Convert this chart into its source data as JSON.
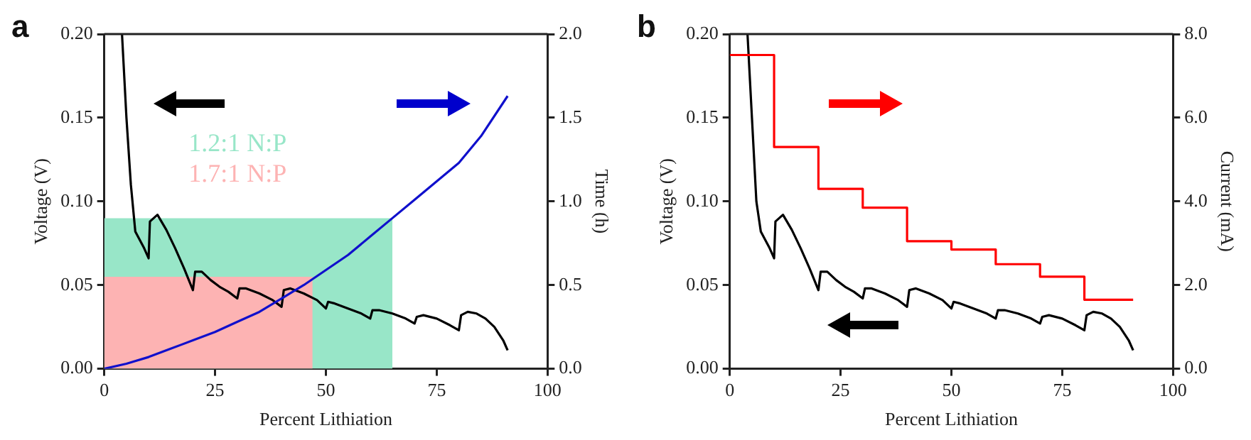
{
  "chart_data": [
    {
      "type": "line",
      "title": "a",
      "xlabel": "Percent Lithiation",
      "ylabel": "Voltage (V)",
      "y2label": "Time (h)",
      "legend": false,
      "grid": false,
      "xlim": [
        0,
        100
      ],
      "xticks": [
        0,
        25,
        50,
        75,
        100
      ],
      "ylim": [
        0,
        0.2
      ],
      "yticks": [
        {
          "value": 0,
          "label": "0.00"
        },
        {
          "value": 0.05,
          "label": "0.05"
        },
        {
          "value": 0.1,
          "label": "0.10"
        },
        {
          "value": 0.15,
          "label": "0.15"
        },
        {
          "value": 0.2,
          "label": "0.20"
        }
      ],
      "y2lim": [
        0,
        2
      ],
      "y2ticks": [
        {
          "value": 0,
          "label": "0.0"
        },
        {
          "value": 0.5,
          "label": "0.5"
        },
        {
          "value": 1,
          "label": "1.0"
        },
        {
          "value": 1.5,
          "label": "1.5"
        },
        {
          "value": 2,
          "label": "2.0"
        }
      ],
      "series": [
        {
          "type": "area",
          "name": "1.2:1 N:P",
          "color": "#98e6c8",
          "x": [
            0,
            65
          ],
          "values": [
            0.09,
            0.09
          ]
        },
        {
          "type": "area",
          "name": "1.7:1 N:P",
          "color": "#fdb3b3",
          "x": [
            0,
            47
          ],
          "values": [
            0.055,
            0.055
          ]
        },
        {
          "type": "line",
          "color": "#000000",
          "x": [
            4,
            5,
            6,
            7,
            9,
            10,
            10.3,
            12,
            14,
            16,
            18,
            20,
            20.5,
            22,
            24,
            26,
            28,
            30,
            30.5,
            32,
            35,
            38,
            40,
            40.5,
            42,
            45,
            48,
            50,
            50.5,
            52,
            55,
            58,
            60,
            60.5,
            62,
            65,
            68,
            70,
            70.5,
            72,
            75,
            78,
            80,
            80.5,
            82,
            84,
            86,
            88,
            90,
            91
          ],
          "values": [
            0.2,
            0.15,
            0.11,
            0.082,
            0.072,
            0.066,
            0.088,
            0.092,
            0.083,
            0.072,
            0.06,
            0.047,
            0.058,
            0.058,
            0.053,
            0.049,
            0.046,
            0.042,
            0.048,
            0.048,
            0.045,
            0.041,
            0.037,
            0.047,
            0.048,
            0.045,
            0.041,
            0.036,
            0.04,
            0.039,
            0.036,
            0.033,
            0.03,
            0.035,
            0.035,
            0.033,
            0.03,
            0.027,
            0.031,
            0.032,
            0.03,
            0.026,
            0.023,
            0.032,
            0.034,
            0.033,
            0.03,
            0.025,
            0.017,
            0.011
          ]
        },
        {
          "type": "line",
          "axis": "y2",
          "color": "#1010cc",
          "x": [
            0,
            5,
            10,
            15,
            20,
            25,
            30,
            35,
            40,
            45,
            50,
            55,
            60,
            65,
            70,
            75,
            80,
            85,
            91
          ],
          "values": [
            0,
            0.03,
            0.07,
            0.12,
            0.17,
            0.22,
            0.28,
            0.34,
            0.42,
            0.5,
            0.59,
            0.68,
            0.79,
            0.9,
            1.01,
            1.12,
            1.23,
            1.39,
            1.63
          ]
        }
      ]
    },
    {
      "type": "line",
      "title": "b",
      "xlabel": "Percent Lithiation",
      "ylabel": "Voltage (V)",
      "y2label": "Current (mA)",
      "legend": false,
      "grid": false,
      "xlim": [
        0,
        100
      ],
      "xticks": [
        0,
        25,
        50,
        75,
        100
      ],
      "ylim": [
        0,
        0.2
      ],
      "yticks": [
        {
          "value": 0,
          "label": "0.00"
        },
        {
          "value": 0.05,
          "label": "0.05"
        },
        {
          "value": 0.1,
          "label": "0.10"
        },
        {
          "value": 0.15,
          "label": "0.15"
        },
        {
          "value": 0.2,
          "label": "0.20"
        }
      ],
      "y2lim": [
        0,
        8
      ],
      "y2ticks": [
        {
          "value": 0,
          "label": "0.0"
        },
        {
          "value": 2,
          "label": "2.0"
        },
        {
          "value": 4,
          "label": "4.0"
        },
        {
          "value": 6,
          "label": "6.0"
        },
        {
          "value": 8,
          "label": "8.0"
        }
      ],
      "series": [
        {
          "type": "line",
          "color": "#000000",
          "x": [
            4,
            5,
            6,
            7,
            9,
            10,
            10.3,
            12,
            14,
            16,
            18,
            20,
            20.5,
            22,
            24,
            26,
            28,
            30,
            30.5,
            32,
            35,
            38,
            40,
            40.5,
            42,
            45,
            48,
            50,
            50.5,
            52,
            55,
            58,
            60,
            60.5,
            62,
            65,
            68,
            70,
            70.5,
            72,
            75,
            78,
            80,
            80.5,
            82,
            84,
            86,
            88,
            90,
            91
          ],
          "values": [
            0.2,
            0.15,
            0.1,
            0.082,
            0.072,
            0.066,
            0.088,
            0.092,
            0.083,
            0.072,
            0.06,
            0.047,
            0.058,
            0.058,
            0.053,
            0.049,
            0.046,
            0.042,
            0.048,
            0.048,
            0.045,
            0.041,
            0.037,
            0.047,
            0.048,
            0.045,
            0.041,
            0.036,
            0.04,
            0.039,
            0.036,
            0.033,
            0.03,
            0.035,
            0.035,
            0.033,
            0.03,
            0.027,
            0.031,
            0.032,
            0.03,
            0.026,
            0.023,
            0.032,
            0.034,
            0.033,
            0.03,
            0.025,
            0.017,
            0.011
          ]
        },
        {
          "type": "step",
          "axis": "y2",
          "color": "#ff0000",
          "x": [
            0,
            10,
            20,
            30,
            40,
            50,
            60,
            70,
            80,
            91
          ],
          "values": [
            7.5,
            5.3,
            4.3,
            3.85,
            3.05,
            2.85,
            2.5,
            2.2,
            1.65,
            1.65
          ]
        }
      ]
    }
  ]
}
